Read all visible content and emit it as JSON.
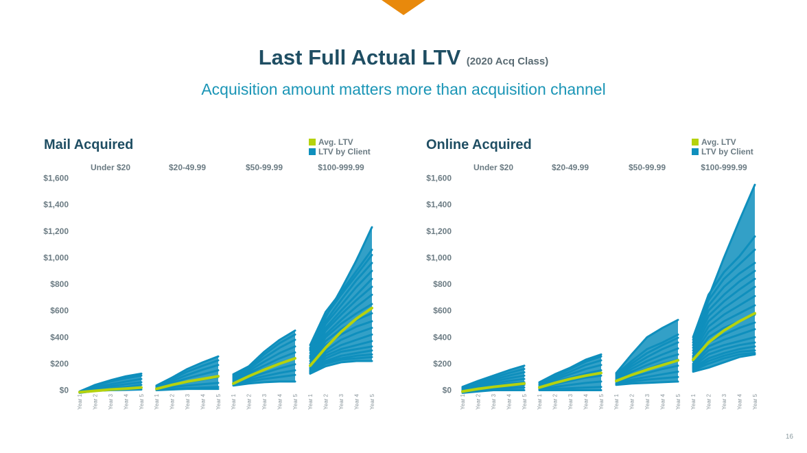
{
  "header": {
    "title": "Last Full Actual LTV",
    "title_suffix": "(2020 Acq Class)",
    "subtitle": "Acquisition amount matters more than acquisition channel"
  },
  "page_number": "16",
  "colors": {
    "avg": "#b5d20e",
    "client": "#0f8fbd",
    "title": "#1f4e63",
    "accent": "#e8890c"
  },
  "legend": {
    "avg_label": "Avg. LTV",
    "client_label": "LTV by Client"
  },
  "chart_data": [
    {
      "type": "line",
      "title": "Mail Acquired",
      "ylim": [
        0,
        1600
      ],
      "yticks": [
        0,
        200,
        400,
        600,
        800,
        1000,
        1200,
        1400,
        1600
      ],
      "ytick_labels": [
        "$0",
        "$200",
        "$400",
        "$600",
        "$800",
        "$1,000",
        "$1,200",
        "$1,400",
        "$1,600"
      ],
      "x": [
        "Year 1",
        "Year 2",
        "Year 3",
        "Year 4",
        "Year 5"
      ],
      "segments": [
        {
          "label": "Under $20",
          "avg": [
            -15,
            -5,
            5,
            12,
            20
          ],
          "client_band": {
            "low": [
              -20,
              -5,
              0,
              0,
              0
            ],
            "high": [
              -10,
              40,
              75,
              105,
              125
            ]
          },
          "client_lines": [
            [
              -10,
              40,
              75,
              105,
              125
            ],
            [
              -10,
              35,
              65,
              90,
              110
            ],
            [
              -12,
              25,
              45,
              65,
              85
            ],
            [
              -14,
              15,
              30,
              45,
              60
            ],
            [
              -16,
              5,
              15,
              25,
              40
            ],
            [
              -18,
              0,
              5,
              10,
              20
            ],
            [
              -20,
              -5,
              0,
              2,
              5
            ]
          ]
        },
        {
          "label": "$20-49.99",
          "avg": [
            10,
            40,
            65,
            85,
            105
          ],
          "client_band": {
            "low": [
              0,
              5,
              10,
              10,
              10
            ],
            "high": [
              35,
              95,
              160,
              210,
              255
            ]
          },
          "client_lines": [
            [
              35,
              95,
              160,
              210,
              255
            ],
            [
              30,
              85,
              140,
              185,
              225
            ],
            [
              25,
              70,
              115,
              155,
              190
            ],
            [
              20,
              55,
              90,
              120,
              150
            ],
            [
              15,
              40,
              60,
              80,
              100
            ],
            [
              10,
              25,
              35,
              45,
              55
            ],
            [
              5,
              10,
              15,
              20,
              25
            ],
            [
              0,
              5,
              10,
              10,
              10
            ]
          ]
        },
        {
          "label": "$50-99.99",
          "avg": [
            50,
            105,
            155,
            200,
            240
          ],
          "client_band": {
            "low": [
              35,
              50,
              60,
              65,
              65
            ],
            "high": [
              120,
              180,
              290,
              380,
              450
            ]
          },
          "client_lines": [
            [
              120,
              180,
              290,
              380,
              450
            ],
            [
              110,
              170,
              270,
              355,
              420
            ],
            [
              100,
              160,
              245,
              320,
              380
            ],
            [
              90,
              145,
              215,
              280,
              330
            ],
            [
              80,
              130,
              185,
              240,
              285
            ],
            [
              70,
              115,
              160,
              205,
              240
            ],
            [
              60,
              95,
              130,
              165,
              195
            ],
            [
              50,
              80,
              105,
              130,
              150
            ],
            [
              40,
              65,
              85,
              100,
              115
            ],
            [
              35,
              50,
              60,
              65,
              65
            ]
          ]
        },
        {
          "label": "$100-999.99",
          "avg": [
            185,
            320,
            440,
            540,
            620
          ],
          "client_band": {
            "low": [
              125,
              180,
              210,
              220,
              220
            ],
            "high": [
              350,
              590,
              750,
              1000,
              1230
            ]
          },
          "client_lines": [
            [
              310,
              550,
              760,
              980,
              1230
            ],
            [
              340,
              590,
              740,
              900,
              1060
            ],
            [
              320,
              560,
              720,
              870,
              1020
            ],
            [
              300,
              520,
              680,
              830,
              960
            ],
            [
              280,
              500,
              640,
              780,
              900
            ],
            [
              260,
              470,
              600,
              720,
              840
            ],
            [
              250,
              450,
              570,
              680,
              780
            ],
            [
              240,
              420,
              530,
              630,
              720
            ],
            [
              220,
              400,
              500,
              580,
              650
            ],
            [
              200,
              370,
              460,
              530,
              580
            ],
            [
              180,
              340,
              420,
              480,
              520
            ],
            [
              170,
              300,
              380,
              430,
              470
            ],
            [
              160,
              280,
              340,
              380,
              420
            ],
            [
              150,
              260,
              310,
              340,
              370
            ],
            [
              145,
              240,
              290,
              310,
              330
            ],
            [
              140,
              220,
              260,
              280,
              300
            ],
            [
              135,
              210,
              240,
              260,
              270
            ],
            [
              130,
              200,
              230,
              240,
              250
            ],
            [
              125,
              180,
              210,
              220,
              220
            ]
          ]
        }
      ]
    },
    {
      "type": "line",
      "title": "Online Acquired",
      "ylim": [
        0,
        1600
      ],
      "yticks": [
        0,
        200,
        400,
        600,
        800,
        1000,
        1200,
        1400,
        1600
      ],
      "ytick_labels": [
        "$0",
        "$200",
        "$400",
        "$600",
        "$800",
        "$1,000",
        "$1,200",
        "$1,400",
        "$1,600"
      ],
      "x": [
        "Year 1",
        "Year 2",
        "Year 3",
        "Year 4",
        "Year 5"
      ],
      "segments": [
        {
          "label": "Under $20",
          "avg": [
            -10,
            10,
            25,
            38,
            50
          ],
          "client_band": {
            "low": [
              -20,
              -10,
              0,
              0,
              0
            ],
            "high": [
              25,
              70,
              110,
              150,
              185
            ]
          },
          "client_lines": [
            [
              25,
              70,
              110,
              150,
              185
            ],
            [
              20,
              60,
              95,
              130,
              160
            ],
            [
              15,
              50,
              80,
              110,
              135
            ],
            [
              10,
              40,
              65,
              90,
              110
            ],
            [
              5,
              30,
              50,
              70,
              85
            ],
            [
              0,
              20,
              35,
              50,
              60
            ],
            [
              -5,
              10,
              20,
              30,
              40
            ],
            [
              -10,
              5,
              10,
              15,
              20
            ],
            [
              -20,
              -10,
              0,
              0,
              0
            ]
          ]
        },
        {
          "label": "$20-49.99",
          "avg": [
            20,
            55,
            85,
            110,
            130
          ],
          "client_band": {
            "low": [
              0,
              0,
              0,
              0,
              0
            ],
            "high": [
              60,
              120,
              170,
              230,
              270
            ]
          },
          "client_lines": [
            [
              60,
              120,
              170,
              230,
              270
            ],
            [
              55,
              110,
              160,
              215,
              255
            ],
            [
              45,
              95,
              140,
              190,
              225
            ],
            [
              40,
              80,
              120,
              160,
              190
            ],
            [
              30,
              65,
              95,
              125,
              150
            ],
            [
              20,
              45,
              70,
              95,
              110
            ],
            [
              10,
              25,
              40,
              55,
              65
            ],
            [
              5,
              10,
              15,
              20,
              25
            ],
            [
              0,
              0,
              0,
              0,
              0
            ]
          ]
        },
        {
          "label": "$50-99.99",
          "avg": [
            70,
            115,
            155,
            190,
            225
          ],
          "client_band": {
            "low": [
              40,
              50,
              55,
              60,
              65
            ],
            "high": [
              130,
              270,
              400,
              470,
              530
            ]
          },
          "client_lines": [
            [
              130,
              270,
              400,
              470,
              530
            ],
            [
              120,
              220,
              310,
              360,
              420
            ],
            [
              110,
              200,
              280,
              340,
              395
            ],
            [
              100,
              180,
              250,
              310,
              360
            ],
            [
              90,
              160,
              220,
              270,
              315
            ],
            [
              80,
              140,
              190,
              235,
              270
            ],
            [
              70,
              120,
              160,
              200,
              230
            ],
            [
              60,
              100,
              130,
              160,
              185
            ],
            [
              50,
              80,
              100,
              120,
              140
            ],
            [
              45,
              65,
              80,
              90,
              100
            ],
            [
              40,
              50,
              55,
              60,
              65
            ]
          ]
        },
        {
          "label": "$100-999.99",
          "avg": [
            230,
            360,
            450,
            520,
            580
          ],
          "client_band": {
            "low": [
              140,
              170,
              210,
              250,
              270
            ],
            "high": [
              400,
              720,
              1000,
              1280,
              1550
            ]
          },
          "client_lines": [
            [
              250,
              700,
              1000,
              1280,
              1550
            ],
            [
              400,
              720,
              890,
              1010,
              1160
            ],
            [
              380,
              680,
              840,
              950,
              1060
            ],
            [
              360,
              640,
              780,
              880,
              960
            ],
            [
              340,
              600,
              720,
              820,
              900
            ],
            [
              320,
              560,
              670,
              760,
              840
            ],
            [
              300,
              520,
              620,
              700,
              780
            ],
            [
              280,
              480,
              570,
              640,
              710
            ],
            [
              260,
              440,
              520,
              580,
              640
            ],
            [
              240,
              400,
              470,
              520,
              570
            ],
            [
              220,
              360,
              420,
              470,
              510
            ],
            [
              200,
              330,
              380,
              420,
              460
            ],
            [
              190,
              300,
              340,
              370,
              400
            ],
            [
              180,
              270,
              310,
              340,
              360
            ],
            [
              170,
              240,
              280,
              310,
              330
            ],
            [
              160,
              220,
              260,
              290,
              300
            ],
            [
              150,
              200,
              240,
              270,
              280
            ],
            [
              140,
              170,
              210,
              250,
              270
            ]
          ]
        }
      ]
    }
  ]
}
